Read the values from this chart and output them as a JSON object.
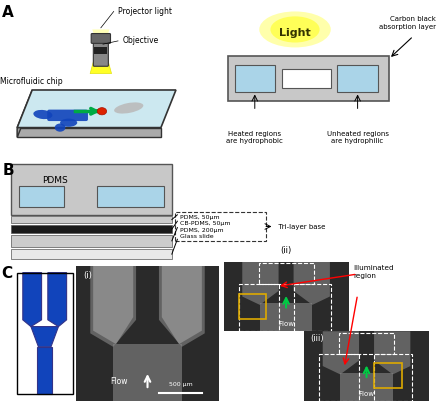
{
  "fig_width": 4.47,
  "fig_height": 4.09,
  "fig_dpi": 100,
  "bg_color": "#ffffff",
  "panel_label_fontsize": 11,
  "panel_label_fontweight": "bold",
  "section_A": {
    "label_texts": {
      "projector_light": "Projector light",
      "objective": "Objective",
      "microfluidic_chip": "Microfluidic chip",
      "light": "Light",
      "carbon_black": "Carbon black\nabsorption layer",
      "heated": "Heated regions\nare hydrophobic",
      "unheated": "Unheated regions\nare hydrophilic"
    }
  },
  "section_B": {
    "label_texts": {
      "pdms_top": "PDMS",
      "pdms_50": "PDMS, 50μm",
      "cb_pdms": "CB-PDMS, 50μm",
      "pdms_200": "PDMS, 200μm",
      "glass": "Glass slide",
      "tri_layer": "Tri-layer base"
    }
  },
  "section_C": {
    "label_texts": {
      "panel_i": "(i)",
      "panel_ii": "(ii)",
      "panel_iii": "(iii)",
      "flow": "Flow",
      "scale_bar": "500 μm",
      "illuminated": "Illuminated\nregion"
    }
  },
  "colors": {
    "light_blue": "#aad4e8",
    "blue_chip": "#1144bb",
    "gray_pdms": "#c8c8c8",
    "micro_chip_surface": "#cce8f0",
    "chip_border": "#333333",
    "cb_layer": "#1a1a1a",
    "glass_color": "#e8e8e8",
    "dark_bg": "#2a2a2a",
    "channel_gray": "#888888",
    "channel_bright": "#b0b0b0"
  }
}
